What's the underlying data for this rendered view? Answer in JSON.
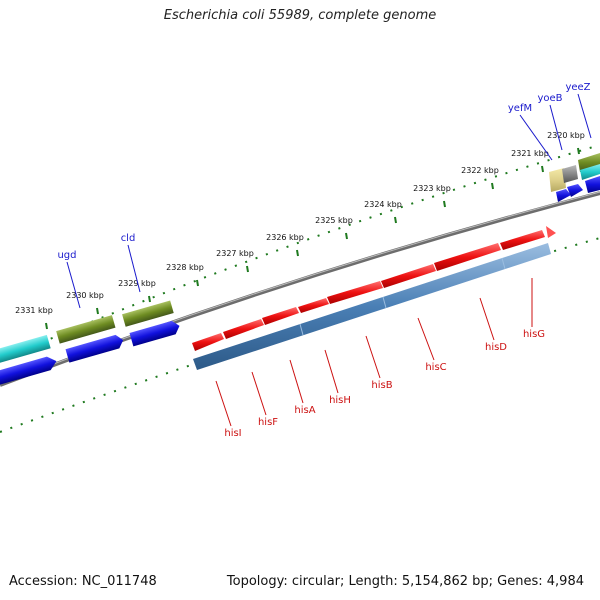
{
  "title": "Escherichia coli 55989, complete genome",
  "footer": {
    "accession": "Accession: NC_011748",
    "stats": "Topology: circular; Length: 5,154,862 bp; Genes: 4,984"
  },
  "ticks": [
    "2320 kbp",
    "2321 kbp",
    "2322 kbp",
    "2323 kbp",
    "2324 kbp",
    "2325 kbp",
    "2326 kbp",
    "2327 kbp",
    "2328 kbp",
    "2329 kbp",
    "2330 kbp",
    "2331 kbp"
  ],
  "genes_top": [
    "yeeZ",
    "yoeB",
    "yefM",
    "cld",
    "ugd"
  ],
  "genes_bottom": [
    "hisI",
    "hisF",
    "hisA",
    "hisH",
    "hisB",
    "hisC",
    "hisD",
    "hisG"
  ],
  "colors": {
    "his_gene": "#ee1111",
    "blue_gene": "#1111dd",
    "cyan_gene": "#22cccc",
    "olive_gene": "#6e8c22",
    "steel_gene": "#4a7fb5",
    "backbone": "#777777",
    "tick": "#1f7a1f",
    "top_label": "#1a1acc",
    "bottom_label": "#cc1111"
  }
}
